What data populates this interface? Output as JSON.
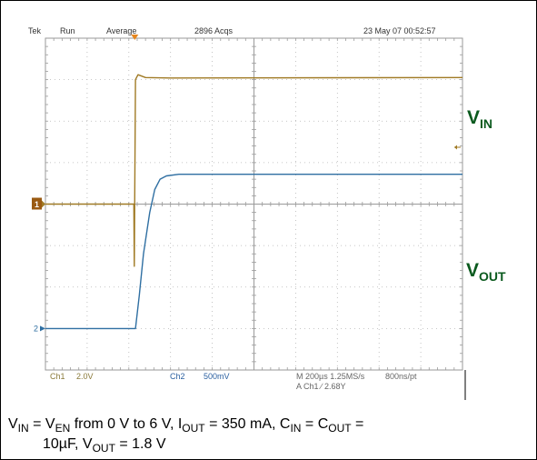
{
  "colors": {
    "ch1": "#a07a24",
    "ch2": "#2f6fa2",
    "grid": "#9a9a9a",
    "label": "#0b5a1e",
    "text_gray": "#666666",
    "text_olive": "#8a7a3a",
    "text_blue": "#2a5fa0",
    "trigger": "#e5861f"
  },
  "header": {
    "brand": "Tek",
    "mode": "Run",
    "acq_mode": "Average",
    "acqs": "2896 Acqs",
    "datetime": "23 May 07 00:52:57"
  },
  "footer": {
    "ch1_name": "Ch1",
    "ch1_scale": "2.0V",
    "ch2_name": "Ch2",
    "ch2_scale": "500mV",
    "timebase": "M 200µs 1.25MS/s",
    "record": "800ns/pt",
    "trigger_info": "A  Ch1  ∕  2.68Y"
  },
  "markers": {
    "ch1": "1",
    "ch2": "2"
  },
  "labels": {
    "vin": {
      "main": "V",
      "sub": "IN"
    },
    "vout": {
      "main": "V",
      "sub": "OUT"
    }
  },
  "caption": {
    "vin": "V",
    "vin_sub": "IN",
    "eq1": " = V",
    "ven_sub": "EN",
    "t1": " from 0 V to 6 V, I",
    "iout_sub": "OUT",
    "t2": " = 350 mA, C",
    "cin_sub": "IN",
    "t3": " = C",
    "cout_sub": "OUT",
    "t4": " =",
    "line2a": "10µF, V",
    "vout_sub": "OUT",
    "line2b": " = 1.8 V"
  },
  "chart_data": {
    "type": "line",
    "x_unit": "divisions",
    "y_unit": "divisions",
    "xlim": [
      0,
      10
    ],
    "ylim": [
      -4,
      4
    ],
    "grid": true,
    "series": [
      {
        "name": "Ch1",
        "channel": 1,
        "ground_div": 0,
        "volts_per_div": 2.0,
        "points": [
          [
            0,
            0
          ],
          [
            2.12,
            0
          ],
          [
            2.13,
            -1.5
          ],
          [
            2.16,
            3.0
          ],
          [
            2.22,
            3.12
          ],
          [
            2.4,
            3.05
          ],
          [
            3.0,
            3.04
          ],
          [
            10,
            3.05
          ]
        ]
      },
      {
        "name": "Ch2",
        "channel": 2,
        "ground_div": -3,
        "volts_per_div": 0.5,
        "points": [
          [
            0,
            -3
          ],
          [
            2.1,
            -3
          ],
          [
            2.16,
            -3.0
          ],
          [
            2.25,
            -2.2
          ],
          [
            2.35,
            -1.2
          ],
          [
            2.5,
            -0.2
          ],
          [
            2.62,
            0.35
          ],
          [
            2.75,
            0.6
          ],
          [
            2.9,
            0.68
          ],
          [
            3.2,
            0.72
          ],
          [
            10,
            0.72
          ]
        ]
      }
    ]
  }
}
